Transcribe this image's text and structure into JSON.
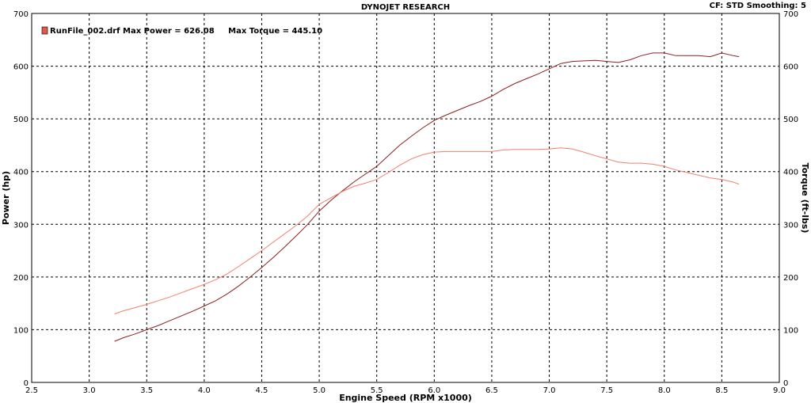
{
  "chart_data": {
    "type": "line",
    "title": "DYNOJET RESEARCH",
    "header_right": "CF: STD  Smoothing: 5",
    "xlabel": "Engine Speed (RPM x1000)",
    "ylabel_left": "Power (hp)",
    "ylabel_right": "Torque (ft-lbs)",
    "xlim": [
      2.5,
      9.0
    ],
    "ylim": [
      0,
      700
    ],
    "x_ticks": [
      "2.5",
      "3.0",
      "3.5",
      "4.0",
      "4.5",
      "5.0",
      "5.5",
      "6.0",
      "6.5",
      "7.0",
      "7.5",
      "8.0",
      "8.5",
      "9.0"
    ],
    "y_ticks": [
      "0",
      "100",
      "200",
      "300",
      "400",
      "500",
      "600",
      "700"
    ],
    "grid": true,
    "legend": {
      "position": "top-left",
      "text": "RunFile_002.drf Max Power = 626.08     Max Torque = 445.10",
      "swatch_color": "#e05a4a"
    },
    "series": [
      {
        "role": "power",
        "color": "#8b2020",
        "x": [
          3.22,
          3.3,
          3.4,
          3.5,
          3.6,
          3.7,
          3.8,
          3.9,
          4.0,
          4.1,
          4.2,
          4.3,
          4.4,
          4.5,
          4.6,
          4.7,
          4.8,
          4.9,
          5.0,
          5.1,
          5.2,
          5.3,
          5.4,
          5.5,
          5.6,
          5.7,
          5.8,
          5.9,
          6.0,
          6.1,
          6.2,
          6.3,
          6.4,
          6.5,
          6.6,
          6.7,
          6.8,
          6.9,
          7.0,
          7.1,
          7.2,
          7.3,
          7.4,
          7.5,
          7.6,
          7.7,
          7.8,
          7.9,
          8.0,
          8.1,
          8.2,
          8.3,
          8.4,
          8.5,
          8.6,
          8.65
        ],
        "values": [
          78,
          85,
          92,
          100,
          108,
          117,
          126,
          135,
          145,
          155,
          168,
          183,
          200,
          218,
          237,
          257,
          278,
          300,
          325,
          345,
          363,
          380,
          395,
          410,
          430,
          450,
          467,
          483,
          497,
          507,
          516,
          525,
          533,
          543,
          556,
          567,
          576,
          585,
          595,
          605,
          609,
          610,
          611,
          609,
          607,
          612,
          620,
          625,
          625,
          620,
          620,
          620,
          618,
          625,
          620,
          618
        ]
      },
      {
        "role": "torque",
        "color": "#f08070",
        "x": [
          3.22,
          3.3,
          3.4,
          3.5,
          3.6,
          3.7,
          3.8,
          3.9,
          4.0,
          4.1,
          4.2,
          4.3,
          4.4,
          4.5,
          4.6,
          4.7,
          4.8,
          4.9,
          5.0,
          5.1,
          5.2,
          5.3,
          5.4,
          5.5,
          5.6,
          5.7,
          5.8,
          5.9,
          6.0,
          6.1,
          6.2,
          6.3,
          6.4,
          6.5,
          6.6,
          6.7,
          6.8,
          6.9,
          7.0,
          7.1,
          7.2,
          7.3,
          7.4,
          7.5,
          7.6,
          7.7,
          7.8,
          7.9,
          8.0,
          8.1,
          8.2,
          8.3,
          8.4,
          8.5,
          8.6,
          8.65
        ],
        "values": [
          130,
          136,
          142,
          148,
          155,
          162,
          170,
          178,
          186,
          195,
          206,
          220,
          235,
          250,
          266,
          282,
          298,
          316,
          338,
          350,
          362,
          372,
          378,
          385,
          398,
          412,
          424,
          432,
          437,
          438,
          438,
          438,
          438,
          438,
          441,
          442,
          442,
          442,
          443,
          445,
          443,
          437,
          430,
          424,
          418,
          416,
          416,
          414,
          410,
          403,
          398,
          393,
          388,
          385,
          380,
          376
        ]
      }
    ]
  }
}
